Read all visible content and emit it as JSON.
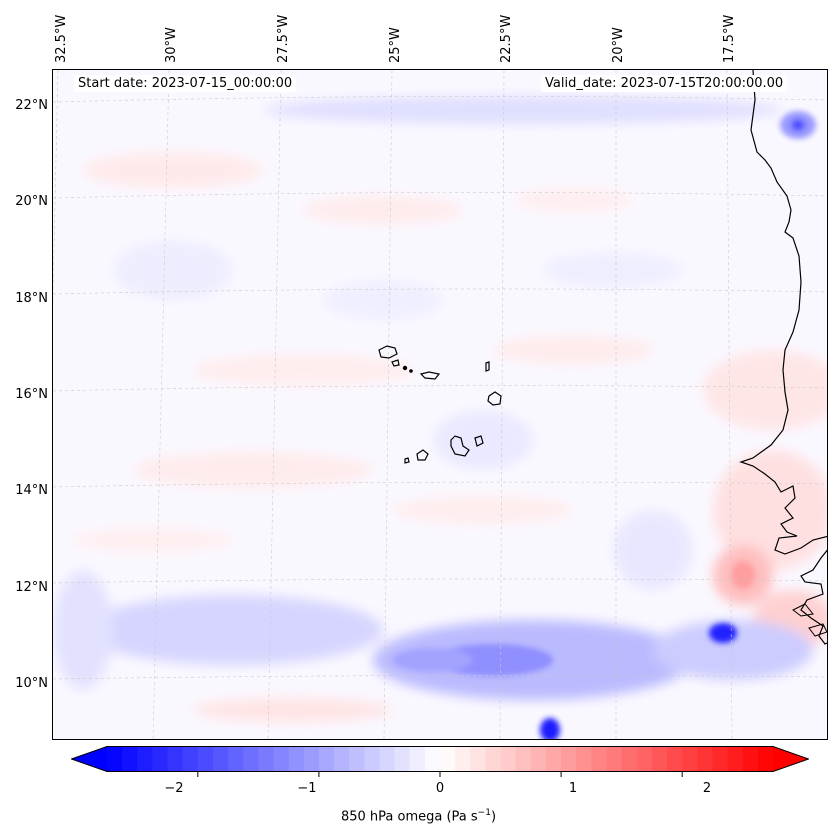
{
  "map": {
    "start_date": "Start date: 2023-07-15_00:00:00",
    "valid_date": "Valid_date: 2023-07-15T20:00:00.00",
    "lon_labels": [
      "32.5°W",
      "30°W",
      "27.5°W",
      "25°W",
      "22.5°W",
      "20°W",
      "17.5°W"
    ],
    "lat_labels": [
      "22°N",
      "20°N",
      "18°N",
      "16°N",
      "14°N",
      "12°N",
      "10°N"
    ],
    "field_name": "850 hPa omega",
    "colormap": "bwr",
    "colors": {
      "negative": "#0000ff",
      "neutral": "#ffffff",
      "positive": "#ff0000",
      "coastline": "#000000"
    },
    "gridlines": true
  },
  "colorbar": {
    "ticks": [
      "−2",
      "−1",
      "0",
      "1",
      "2"
    ],
    "range": [
      -2.75,
      2.75
    ],
    "extend": "both",
    "label_main": "850 hPa omega (Pa s",
    "label_sup": "−1",
    "label_end": ")"
  }
}
